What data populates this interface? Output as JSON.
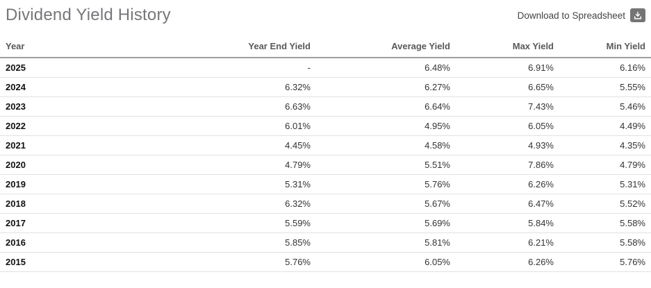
{
  "page": {
    "title": "Dividend Yield History"
  },
  "toolbar": {
    "download_label": "Download to Spreadsheet",
    "download_icon": "download-icon"
  },
  "table": {
    "columns": [
      "Year",
      "Year End Yield",
      "Average Yield",
      "Max Yield",
      "Min Yield"
    ],
    "rows": [
      [
        "2025",
        "-",
        "6.48%",
        "6.91%",
        "6.16%"
      ],
      [
        "2024",
        "6.32%",
        "6.27%",
        "6.65%",
        "5.55%"
      ],
      [
        "2023",
        "6.63%",
        "6.64%",
        "7.43%",
        "5.46%"
      ],
      [
        "2022",
        "6.01%",
        "4.95%",
        "6.05%",
        "4.49%"
      ],
      [
        "2021",
        "4.45%",
        "4.58%",
        "4.93%",
        "4.35%"
      ],
      [
        "2020",
        "4.79%",
        "5.51%",
        "7.86%",
        "4.79%"
      ],
      [
        "2019",
        "5.31%",
        "5.76%",
        "6.26%",
        "5.31%"
      ],
      [
        "2018",
        "6.32%",
        "5.67%",
        "6.47%",
        "5.52%"
      ],
      [
        "2017",
        "5.59%",
        "5.69%",
        "5.84%",
        "5.58%"
      ],
      [
        "2016",
        "5.85%",
        "5.81%",
        "6.21%",
        "5.58%"
      ],
      [
        "2015",
        "5.76%",
        "6.05%",
        "6.26%",
        "5.76%"
      ]
    ]
  },
  "colors": {
    "title_text": "#76777a",
    "header_text": "#58595b",
    "cell_text": "#333333",
    "year_text": "#111111",
    "header_rule": "#9e9e9e",
    "row_rule": "#e2e2e2",
    "download_button_bg": "#757575"
  }
}
